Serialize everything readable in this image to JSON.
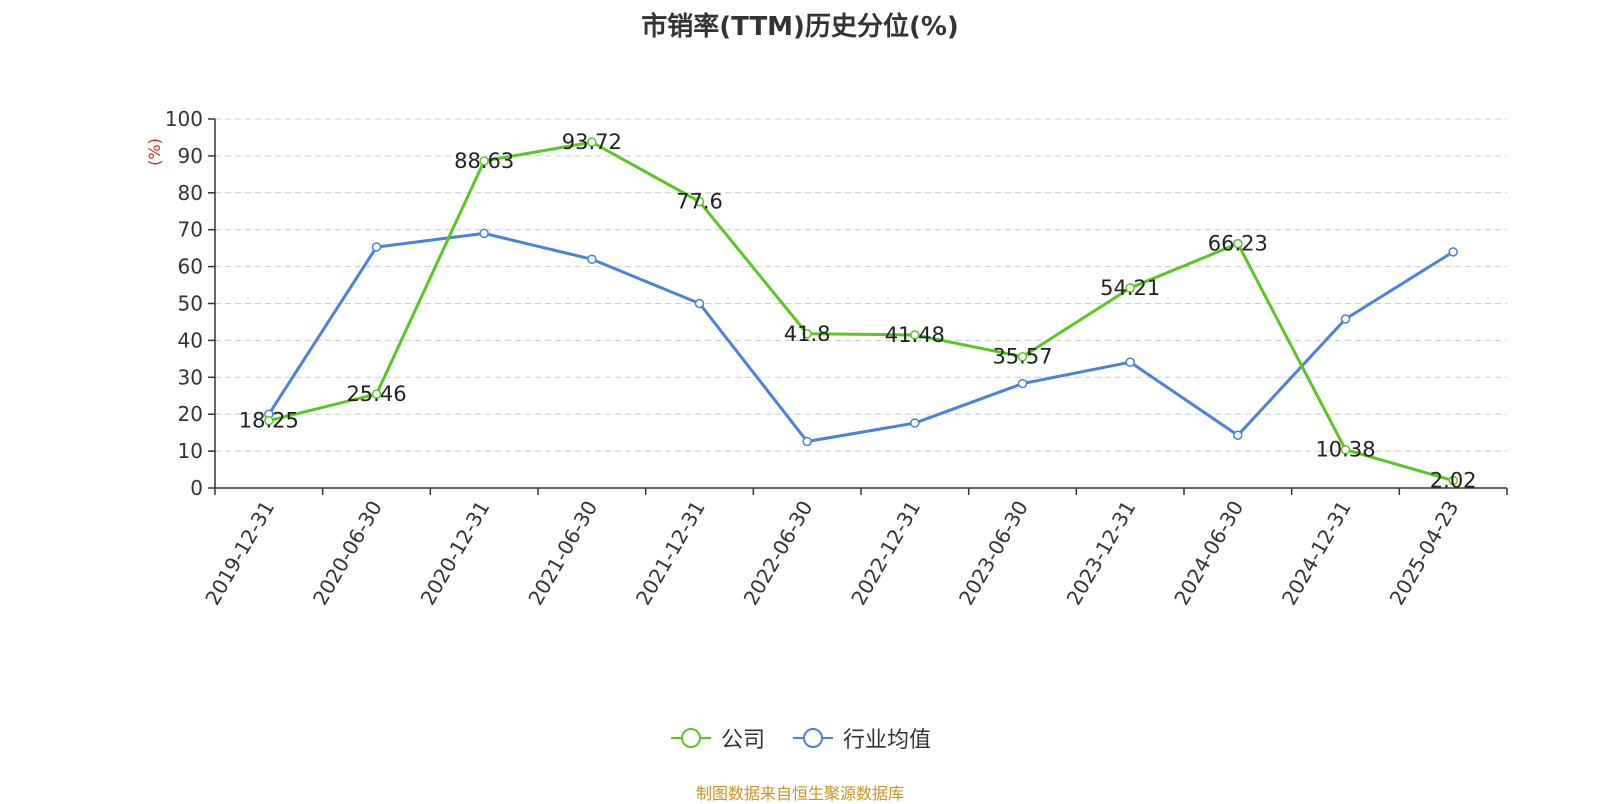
{
  "chart_data": {
    "type": "line",
    "title": "市销率(TTM)历史分位(%)",
    "ylabel": "(%)",
    "xlabel": "",
    "ylim": [
      0,
      100
    ],
    "yticks": [
      0,
      10,
      20,
      30,
      40,
      50,
      60,
      70,
      80,
      90,
      100
    ],
    "grid": true,
    "legend_position": "bottom",
    "categories": [
      "2019-12-31",
      "2020-06-30",
      "2020-12-31",
      "2021-06-30",
      "2021-12-31",
      "2022-06-30",
      "2022-12-31",
      "2023-06-30",
      "2023-12-31",
      "2024-06-30",
      "2024-12-31",
      "2025-04-23"
    ],
    "series": [
      {
        "name": "公司",
        "color": "#5cc524",
        "values": [
          18.25,
          25.46,
          88.63,
          93.72,
          77.6,
          41.8,
          41.48,
          35.57,
          54.21,
          66.23,
          10.38,
          2.02
        ],
        "data_labels": [
          "18.25",
          "25.46",
          "88.63",
          "93.72",
          "77.6",
          "41.8",
          "41.48",
          "35.57",
          "54.21",
          "66.23",
          "10.38",
          "2.02"
        ]
      },
      {
        "name": "行业均值",
        "color": "#4b80dc",
        "values": [
          20.0,
          65.3,
          69.0,
          62.0,
          50.0,
          12.6,
          17.6,
          28.3,
          34.1,
          14.3,
          45.8,
          64.0
        ]
      }
    ]
  },
  "footer": "制图数据来自恒生聚源数据库"
}
